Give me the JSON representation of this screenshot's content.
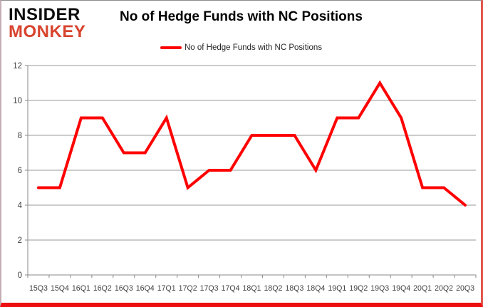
{
  "logo": {
    "line1": "INSIDER",
    "line2": "MONKEY",
    "line1_color": "#0d0d0d",
    "line2_color": "#d8432e"
  },
  "chart": {
    "title": "No of Hedge Funds with NC Positions",
    "legend_label": "No of Hedge Funds with NC Positions"
  },
  "chart_data": {
    "type": "line",
    "title": "No of Hedge Funds with NC Positions",
    "categories": [
      "15Q3",
      "15Q4",
      "16Q1",
      "16Q2",
      "16Q3",
      "16Q4",
      "17Q1",
      "17Q2",
      "17Q3",
      "17Q4",
      "18Q1",
      "18Q2",
      "18Q3",
      "18Q4",
      "19Q1",
      "19Q2",
      "19Q3",
      "19Q4",
      "20Q1",
      "20Q2",
      "20Q3"
    ],
    "series": [
      {
        "name": "No of Hedge Funds with NC Positions",
        "color": "#ff0000",
        "values": [
          5,
          5,
          9,
          9,
          7,
          7,
          9,
          5,
          6,
          6,
          8,
          8,
          8,
          6,
          9,
          9,
          11,
          9,
          5,
          5,
          4
        ]
      }
    ],
    "xlabel": "",
    "ylabel": "",
    "ylim": [
      0,
      12
    ],
    "ytick_step": 2,
    "yticks": [
      0,
      2,
      4,
      6,
      8,
      10,
      12
    ],
    "grid": "horizontal",
    "legend_position": "top-center",
    "gridline_color": "#989898",
    "axis_color": "#8a8a8a",
    "tick_label_color": "#3f3f3f"
  }
}
